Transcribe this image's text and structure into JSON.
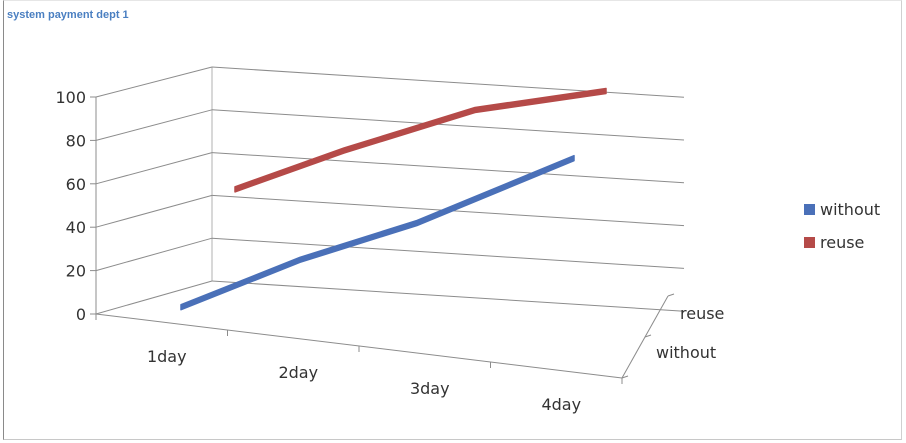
{
  "chart_data": {
    "type": "line",
    "title": "system payment dept 1",
    "categories": [
      "1day",
      "2day",
      "3day",
      "4day"
    ],
    "series": [
      {
        "name": "without",
        "values": [
          5,
          28,
          40,
          72
        ],
        "color": "#4a70b8"
      },
      {
        "name": "reuse",
        "values": [
          59,
          75,
          91,
          100
        ],
        "color": "#b54a48"
      }
    ],
    "depth_labels": [
      "reuse",
      "without"
    ],
    "ylim": [
      0,
      100
    ],
    "yticks": [
      0,
      20,
      40,
      60,
      80,
      100
    ],
    "grid": true,
    "legend": "right"
  }
}
